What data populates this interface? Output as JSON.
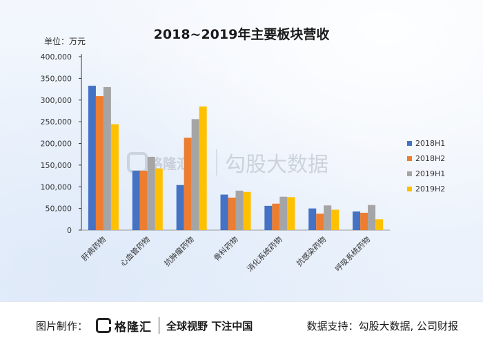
{
  "chart_data": {
    "type": "bar",
    "title": "2018~2019年主要板块营收",
    "unit_label": "单位：万元",
    "categories": [
      "肝病药物",
      "心血管药物",
      "抗肿瘤药物",
      "骨科药物",
      "消化系统药物",
      "抗感染药物",
      "呼吸系统药物"
    ],
    "series": [
      {
        "name": "2018H1",
        "color": "#4472c4",
        "values": [
          333000,
          137000,
          104000,
          82000,
          56000,
          50000,
          43000
        ]
      },
      {
        "name": "2018H2",
        "color": "#ed7d31",
        "values": [
          309000,
          137000,
          213000,
          75000,
          61000,
          38000,
          40000
        ]
      },
      {
        "name": "2019H1",
        "color": "#a5a5a5",
        "values": [
          330000,
          169000,
          256000,
          91000,
          77000,
          57000,
          58000
        ]
      },
      {
        "name": "2019H2",
        "color": "#ffc000",
        "values": [
          244000,
          142000,
          285000,
          88000,
          76000,
          47000,
          25000
        ]
      }
    ],
    "yticks": [
      "0",
      "50,000",
      "100,000",
      "150,000",
      "200,000",
      "250,000",
      "300,000",
      "350,000",
      "400,000"
    ],
    "ylim": [
      0,
      400000
    ],
    "legend_position": "right",
    "grid": false
  },
  "watermark": {
    "brand": "格隆汇",
    "text": "勾股大数据"
  },
  "footer": {
    "credit_label": "图片制作：",
    "logo_text": "格隆汇",
    "slogan": "全球视野 下注中国",
    "source": "数据支持：勾股大数据, 公司财报"
  }
}
